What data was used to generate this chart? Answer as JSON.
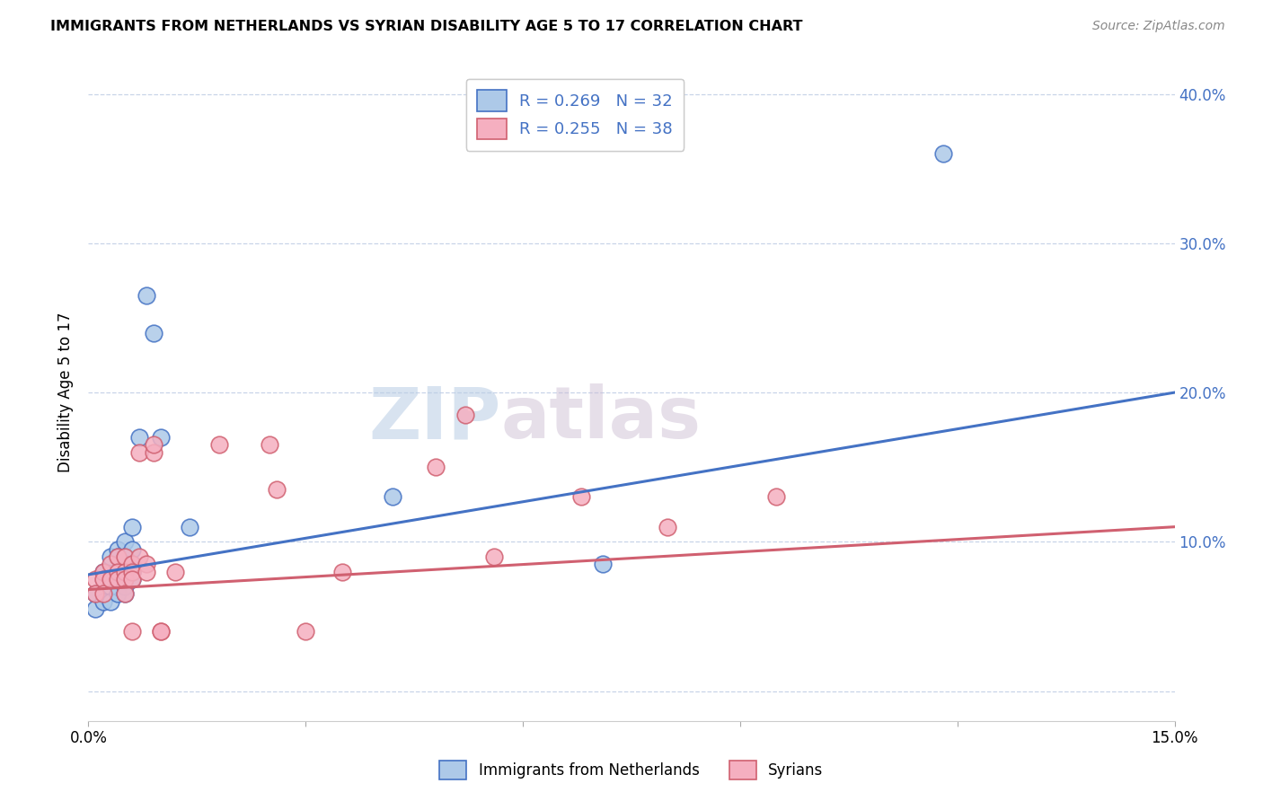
{
  "title": "IMMIGRANTS FROM NETHERLANDS VS SYRIAN DISABILITY AGE 5 TO 17 CORRELATION CHART",
  "source": "Source: ZipAtlas.com",
  "ylabel": "Disability Age 5 to 17",
  "xlim": [
    0.0,
    0.15
  ],
  "ylim": [
    -0.02,
    0.42
  ],
  "color_blue": "#adc9e8",
  "color_pink": "#f5afc0",
  "line_blue": "#4472c4",
  "line_pink": "#d06070",
  "watermark_zip": "ZIP",
  "watermark_atlas": "atlas",
  "netherlands_x": [
    0.001,
    0.001,
    0.002,
    0.002,
    0.002,
    0.003,
    0.003,
    0.003,
    0.003,
    0.004,
    0.004,
    0.004,
    0.004,
    0.004,
    0.005,
    0.005,
    0.005,
    0.005,
    0.005,
    0.006,
    0.006,
    0.006,
    0.006,
    0.006,
    0.007,
    0.008,
    0.009,
    0.01,
    0.014,
    0.042,
    0.071,
    0.118
  ],
  "netherlands_y": [
    0.065,
    0.055,
    0.075,
    0.08,
    0.06,
    0.09,
    0.075,
    0.07,
    0.06,
    0.095,
    0.09,
    0.075,
    0.075,
    0.065,
    0.1,
    0.09,
    0.09,
    0.07,
    0.065,
    0.11,
    0.095,
    0.085,
    0.08,
    0.075,
    0.17,
    0.265,
    0.24,
    0.17,
    0.11,
    0.13,
    0.085,
    0.36
  ],
  "syrians_x": [
    0.001,
    0.001,
    0.002,
    0.002,
    0.002,
    0.003,
    0.003,
    0.004,
    0.004,
    0.004,
    0.005,
    0.005,
    0.005,
    0.005,
    0.006,
    0.006,
    0.006,
    0.006,
    0.007,
    0.007,
    0.008,
    0.008,
    0.009,
    0.009,
    0.01,
    0.01,
    0.012,
    0.018,
    0.025,
    0.026,
    0.03,
    0.035,
    0.048,
    0.052,
    0.056,
    0.068,
    0.08,
    0.095
  ],
  "syrians_y": [
    0.075,
    0.065,
    0.08,
    0.075,
    0.065,
    0.085,
    0.075,
    0.09,
    0.08,
    0.075,
    0.09,
    0.08,
    0.075,
    0.065,
    0.085,
    0.08,
    0.075,
    0.04,
    0.09,
    0.16,
    0.085,
    0.08,
    0.16,
    0.165,
    0.04,
    0.04,
    0.08,
    0.165,
    0.165,
    0.135,
    0.04,
    0.08,
    0.15,
    0.185,
    0.09,
    0.13,
    0.11,
    0.13
  ],
  "blue_line_x0": 0.0,
  "blue_line_y0": 0.078,
  "blue_line_x1": 0.15,
  "blue_line_y1": 0.2,
  "pink_line_x0": 0.0,
  "pink_line_y0": 0.068,
  "pink_line_x1": 0.15,
  "pink_line_y1": 0.11
}
